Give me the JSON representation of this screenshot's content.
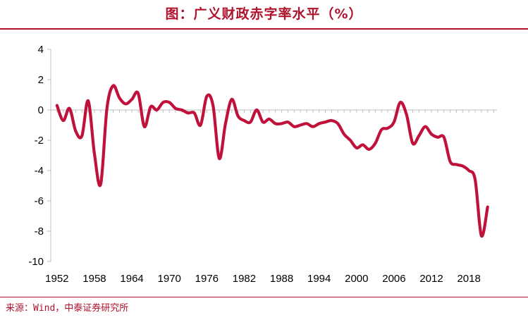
{
  "header": {
    "title": "图：广义财政赤字率水平（%）"
  },
  "footer": {
    "source": "来源：Wind，中泰证券研究所"
  },
  "colors": {
    "line": "#c0113a",
    "accent": "#b0122b"
  },
  "chart_data": {
    "type": "line",
    "title": "",
    "xlabel": "",
    "ylabel": "",
    "ylim": [
      -10,
      4
    ],
    "xlim": [
      1952,
      2021
    ],
    "yticks": [
      "4",
      "2",
      "0",
      "-2",
      "-4",
      "-6",
      "-8",
      "-10"
    ],
    "xticks": [
      "1952",
      "1958",
      "1964",
      "1970",
      "1976",
      "1982",
      "1988",
      "1994",
      "2000",
      "2006",
      "2012",
      "2018"
    ],
    "grid": false,
    "legend": "none",
    "series": [
      {
        "x": [
          1952,
          1953,
          1954,
          1955,
          1956,
          1957,
          1958,
          1959,
          1960,
          1961,
          1962,
          1963,
          1964,
          1965,
          1966,
          1967,
          1968,
          1969,
          1970,
          1971,
          1972,
          1973,
          1974,
          1975,
          1976,
          1977,
          1978,
          1979,
          1980,
          1981,
          1982,
          1983,
          1984,
          1985,
          1986,
          1987,
          1988,
          1989,
          1990,
          1991,
          1992,
          1993,
          1994,
          1995,
          1996,
          1997,
          1998,
          1999,
          2000,
          2001,
          2002,
          2003,
          2004,
          2005,
          2006,
          2007,
          2008,
          2009,
          2010,
          2011,
          2012,
          2013,
          2014,
          2015,
          2016,
          2017,
          2018,
          2019,
          2020,
          2021
        ],
        "y": [
          0.3,
          -0.7,
          0.1,
          -1.4,
          -1.7,
          0.6,
          -2.9,
          -4.9,
          0.1,
          1.6,
          0.8,
          0.4,
          0.7,
          1.1,
          -1.1,
          0.2,
          0.0,
          0.5,
          0.5,
          0.1,
          0.0,
          -0.2,
          -0.2,
          -1.0,
          0.9,
          0.3,
          -3.2,
          -0.9,
          0.7,
          -0.4,
          -0.7,
          -0.8,
          0.0,
          -0.8,
          -0.6,
          -0.9,
          -0.9,
          -0.8,
          -1.1,
          -1.0,
          -0.9,
          -1.1,
          -0.9,
          -0.8,
          -0.7,
          -0.9,
          -1.6,
          -2.0,
          -2.5,
          -2.3,
          -2.6,
          -2.2,
          -1.3,
          -1.2,
          -0.8,
          0.5,
          -0.3,
          -2.2,
          -1.7,
          -1.1,
          -1.6,
          -1.8,
          -1.8,
          -3.4,
          -3.6,
          -3.7,
          -4.0,
          -4.6,
          -8.3,
          -6.4
        ]
      }
    ]
  }
}
